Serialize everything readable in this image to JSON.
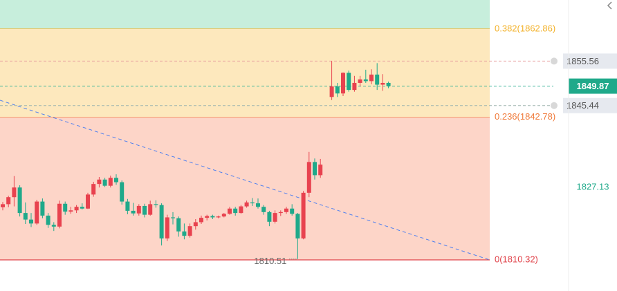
{
  "chart_data": {
    "type": "candlestick",
    "ylim": [
      1803.24,
      1869.47
    ],
    "colors": {
      "up": "#e8424f",
      "down": "#1fa98a"
    },
    "fib_levels": [
      {
        "label": "0.382(1862.86)",
        "price": 1862.86,
        "color": "#f3b22b",
        "fill": "#c7eedc"
      },
      {
        "label": "0.236(1842.78)",
        "price": 1842.78,
        "color": "#f07a3a",
        "fill": "#fde8bd"
      },
      {
        "label": "0(1810.32)",
        "price": 1810.32,
        "color": "#e0434a",
        "fill": "#fdd5c8"
      }
    ],
    "price_lines": [
      {
        "value": 1855.56,
        "style": "gray",
        "color": "#e7a0a0"
      },
      {
        "value": 1849.87,
        "style": "current",
        "color": "#3fb59a"
      },
      {
        "value": 1845.44,
        "style": "gray",
        "color": "#9fb6b0"
      }
    ],
    "axis_label": 1827.13,
    "low_label": 1810.51,
    "candles": [
      {
        "o": 1822.3,
        "h": 1823.5,
        "l": 1821.6,
        "c": 1823.0
      },
      {
        "o": 1823.0,
        "h": 1824.9,
        "l": 1822.3,
        "c": 1824.6
      },
      {
        "o": 1824.6,
        "h": 1829.4,
        "l": 1822.5,
        "c": 1826.8
      },
      {
        "o": 1826.8,
        "h": 1827.3,
        "l": 1820.2,
        "c": 1821.0
      },
      {
        "o": 1821.0,
        "h": 1823.4,
        "l": 1818.5,
        "c": 1819.5
      },
      {
        "o": 1819.5,
        "h": 1821.0,
        "l": 1817.8,
        "c": 1818.6
      },
      {
        "o": 1818.6,
        "h": 1824.0,
        "l": 1818.3,
        "c": 1823.6
      },
      {
        "o": 1823.6,
        "h": 1824.3,
        "l": 1819.8,
        "c": 1820.4
      },
      {
        "o": 1820.4,
        "h": 1821.0,
        "l": 1817.6,
        "c": 1818.3
      },
      {
        "o": 1818.3,
        "h": 1818.9,
        "l": 1816.9,
        "c": 1817.9
      },
      {
        "o": 1817.9,
        "h": 1823.8,
        "l": 1817.5,
        "c": 1823.1
      },
      {
        "o": 1823.1,
        "h": 1823.6,
        "l": 1820.6,
        "c": 1821.3
      },
      {
        "o": 1821.3,
        "h": 1822.4,
        "l": 1820.8,
        "c": 1821.6
      },
      {
        "o": 1821.6,
        "h": 1822.8,
        "l": 1821.0,
        "c": 1822.4
      },
      {
        "o": 1822.4,
        "h": 1823.2,
        "l": 1821.8,
        "c": 1822.0
      },
      {
        "o": 1822.0,
        "h": 1825.6,
        "l": 1821.9,
        "c": 1825.2
      },
      {
        "o": 1825.2,
        "h": 1828.1,
        "l": 1824.7,
        "c": 1827.6
      },
      {
        "o": 1827.6,
        "h": 1829.2,
        "l": 1826.8,
        "c": 1828.6
      },
      {
        "o": 1828.6,
        "h": 1829.0,
        "l": 1826.9,
        "c": 1827.2
      },
      {
        "o": 1827.2,
        "h": 1829.5,
        "l": 1826.8,
        "c": 1829.0
      },
      {
        "o": 1829.0,
        "h": 1829.8,
        "l": 1827.4,
        "c": 1828.0
      },
      {
        "o": 1828.0,
        "h": 1828.4,
        "l": 1822.9,
        "c": 1823.6
      },
      {
        "o": 1823.6,
        "h": 1824.2,
        "l": 1820.7,
        "c": 1821.5
      },
      {
        "o": 1821.5,
        "h": 1823.3,
        "l": 1820.4,
        "c": 1820.9
      },
      {
        "o": 1820.9,
        "h": 1823.0,
        "l": 1820.4,
        "c": 1822.6
      },
      {
        "o": 1822.6,
        "h": 1823.1,
        "l": 1820.0,
        "c": 1820.6
      },
      {
        "o": 1820.6,
        "h": 1823.8,
        "l": 1820.4,
        "c": 1823.0
      },
      {
        "o": 1823.0,
        "h": 1823.9,
        "l": 1822.2,
        "c": 1822.8
      },
      {
        "o": 1822.8,
        "h": 1823.2,
        "l": 1813.6,
        "c": 1815.2
      },
      {
        "o": 1815.2,
        "h": 1820.6,
        "l": 1814.6,
        "c": 1820.0
      },
      {
        "o": 1820.0,
        "h": 1821.2,
        "l": 1818.4,
        "c": 1819.8
      },
      {
        "o": 1819.8,
        "h": 1820.2,
        "l": 1815.6,
        "c": 1816.8
      },
      {
        "o": 1816.8,
        "h": 1818.6,
        "l": 1815.0,
        "c": 1815.8
      },
      {
        "o": 1815.8,
        "h": 1818.6,
        "l": 1815.4,
        "c": 1818.0
      },
      {
        "o": 1818.0,
        "h": 1819.6,
        "l": 1817.2,
        "c": 1818.9
      },
      {
        "o": 1818.9,
        "h": 1820.4,
        "l": 1818.5,
        "c": 1819.9
      },
      {
        "o": 1819.9,
        "h": 1820.6,
        "l": 1819.3,
        "c": 1820.3
      },
      {
        "o": 1820.3,
        "h": 1820.6,
        "l": 1819.6,
        "c": 1820.0
      },
      {
        "o": 1820.0,
        "h": 1820.4,
        "l": 1819.8,
        "c": 1820.2
      },
      {
        "o": 1820.2,
        "h": 1821.0,
        "l": 1820.0,
        "c": 1820.8
      },
      {
        "o": 1820.8,
        "h": 1822.4,
        "l": 1820.6,
        "c": 1822.0
      },
      {
        "o": 1822.0,
        "h": 1822.4,
        "l": 1820.4,
        "c": 1821.0
      },
      {
        "o": 1821.0,
        "h": 1822.8,
        "l": 1820.8,
        "c": 1822.5
      },
      {
        "o": 1822.5,
        "h": 1823.8,
        "l": 1822.2,
        "c": 1823.4
      },
      {
        "o": 1823.4,
        "h": 1824.4,
        "l": 1822.6,
        "c": 1823.2
      },
      {
        "o": 1823.2,
        "h": 1824.3,
        "l": 1822.0,
        "c": 1822.4
      },
      {
        "o": 1822.4,
        "h": 1822.8,
        "l": 1820.6,
        "c": 1821.2
      },
      {
        "o": 1821.2,
        "h": 1821.5,
        "l": 1818.0,
        "c": 1819.0
      },
      {
        "o": 1819.0,
        "h": 1821.6,
        "l": 1818.6,
        "c": 1821.0
      },
      {
        "o": 1821.0,
        "h": 1821.6,
        "l": 1820.3,
        "c": 1821.2
      },
      {
        "o": 1821.2,
        "h": 1822.4,
        "l": 1820.8,
        "c": 1822.0
      },
      {
        "o": 1822.0,
        "h": 1823.0,
        "l": 1820.4,
        "c": 1820.8
      },
      {
        "o": 1820.8,
        "h": 1821.0,
        "l": 1810.51,
        "c": 1815.2
      },
      {
        "o": 1815.2,
        "h": 1826.0,
        "l": 1815.0,
        "c": 1825.6
      },
      {
        "o": 1825.6,
        "h": 1834.9,
        "l": 1824.6,
        "c": 1832.6
      },
      {
        "o": 1832.6,
        "h": 1833.4,
        "l": 1828.6,
        "c": 1829.6
      },
      {
        "o": 1829.6,
        "h": 1833.3,
        "l": 1829.0,
        "c": 1832.0
      },
      null,
      {
        "o": 1847.4,
        "h": 1855.6,
        "l": 1846.7,
        "c": 1849.8
      },
      {
        "o": 1849.8,
        "h": 1850.6,
        "l": 1847.4,
        "c": 1848.2
      },
      {
        "o": 1848.2,
        "h": 1853.0,
        "l": 1847.6,
        "c": 1852.9
      },
      {
        "o": 1852.9,
        "h": 1853.4,
        "l": 1848.6,
        "c": 1849.0
      },
      {
        "o": 1849.0,
        "h": 1852.2,
        "l": 1848.6,
        "c": 1850.6
      },
      {
        "o": 1850.6,
        "h": 1852.2,
        "l": 1849.8,
        "c": 1851.4
      },
      {
        "o": 1851.4,
        "h": 1853.6,
        "l": 1850.6,
        "c": 1851.0
      },
      {
        "o": 1851.0,
        "h": 1853.7,
        "l": 1850.3,
        "c": 1852.5
      },
      {
        "o": 1852.5,
        "h": 1855.1,
        "l": 1849.0,
        "c": 1850.2
      },
      {
        "o": 1850.2,
        "h": 1852.6,
        "l": 1848.8,
        "c": 1850.6
      },
      {
        "o": 1850.6,
        "h": 1850.9,
        "l": 1849.4,
        "c": 1849.87
      }
    ]
  }
}
